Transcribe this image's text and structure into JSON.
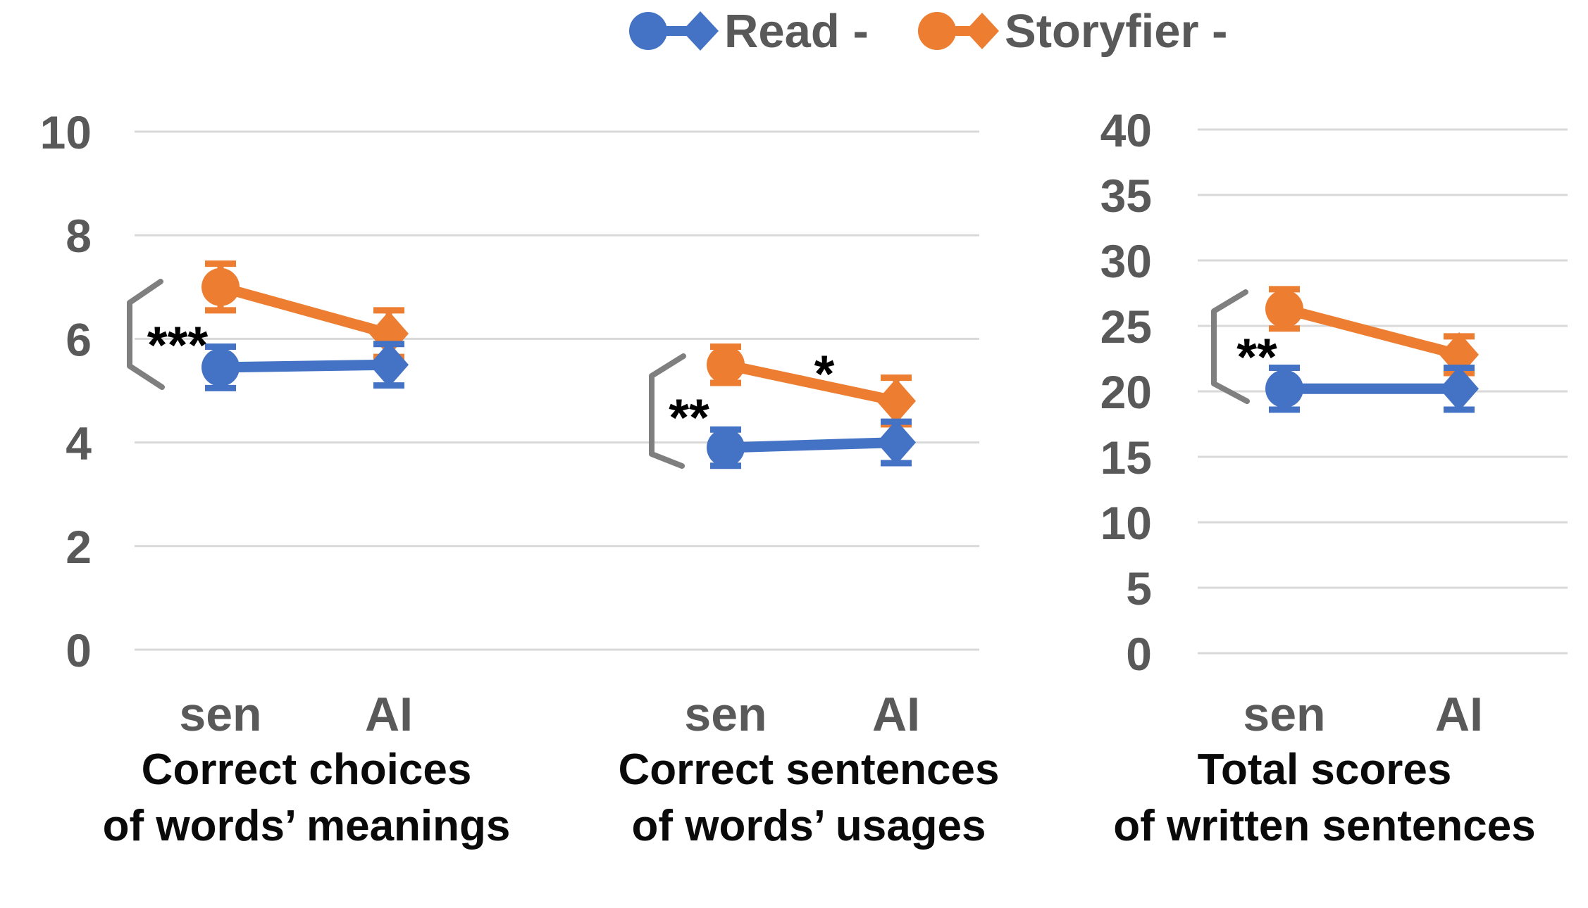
{
  "legend": {
    "text_color": "#595959",
    "items": [
      {
        "label": "Read -",
        "color": "#4472C4",
        "marker": "circle-line-diamond"
      },
      {
        "label": "Storyfier -",
        "color": "#ED7D31",
        "marker": "circle-line-diamond"
      }
    ]
  },
  "chart_data": {
    "type": "line",
    "series_names": [
      "Read-",
      "Storyfier-"
    ],
    "colors": {
      "read": "#4472C4",
      "storyfier": "#ED7D31",
      "grid": "#D9D9D9",
      "tick_text": "#595959",
      "caption_text": "#0a0a0a",
      "significance_text": "#000000",
      "bracket": "#7F7F7F"
    },
    "panels": [
      {
        "id": "left-shared-axis",
        "ylim": [
          0,
          10
        ],
        "yticks": [
          0,
          2,
          4,
          6,
          8,
          10
        ],
        "grid": true,
        "legend_position": "top-center"
      },
      {
        "id": "right-axis",
        "ylim": [
          0,
          40
        ],
        "yticks": [
          0,
          5,
          10,
          15,
          20,
          25,
          30,
          35,
          40
        ],
        "grid": true
      }
    ],
    "groups": [
      {
        "panel": 0,
        "categories": [
          "sen",
          "AI"
        ],
        "caption": [
          "Correct choices",
          "of words’ meanings"
        ],
        "series": [
          {
            "name": "Storyfier-",
            "values": [
              7.0,
              6.1
            ],
            "errors": [
              0.45,
              0.45
            ]
          },
          {
            "name": "Read-",
            "values": [
              5.45,
              5.5
            ],
            "errors": [
              0.4,
              0.4
            ]
          }
        ],
        "significance": {
          "label": "***",
          "between": "Read- vs Storyfier- at sen"
        }
      },
      {
        "panel": 0,
        "categories": [
          "sen",
          "AI"
        ],
        "caption": [
          "Correct sentences",
          "of words’ usages"
        ],
        "series": [
          {
            "name": "Storyfier-",
            "values": [
              5.5,
              4.8
            ],
            "errors": [
              0.35,
              0.45
            ]
          },
          {
            "name": "Read-",
            "values": [
              3.9,
              4.0
            ],
            "errors": [
              0.35,
              0.4
            ]
          }
        ],
        "significance": {
          "label": "**",
          "between": "Read- vs Storyfier- at sen"
        },
        "slope_significance": {
          "label": "*",
          "on": "Storyfier- sen to AI"
        }
      },
      {
        "panel": 1,
        "categories": [
          "sen",
          "AI"
        ],
        "caption": [
          "Total scores",
          "of written sentences"
        ],
        "series": [
          {
            "name": "Storyfier-",
            "values": [
              26.3,
              22.8
            ],
            "errors": [
              1.5,
              1.4
            ]
          },
          {
            "name": "Read-",
            "values": [
              20.2,
              20.2
            ],
            "errors": [
              1.6,
              1.6
            ]
          }
        ],
        "significance": {
          "label": "**",
          "between": "Read- vs Storyfier- at sen"
        }
      }
    ]
  }
}
